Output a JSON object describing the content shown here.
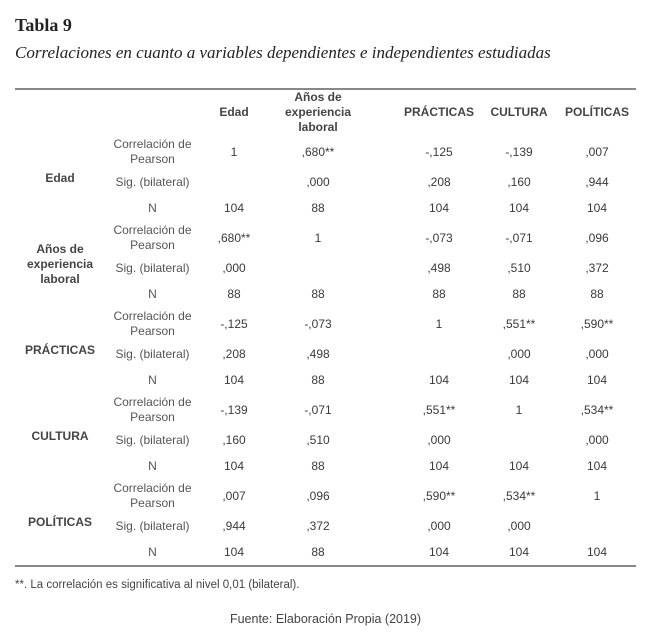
{
  "title": "Tabla 9",
  "subtitle": "Correlaciones en cuanto a variables dependientes e independientes estudiadas",
  "columns": [
    "Edad",
    "Años de experiencia laboral",
    "PRÁCTICAS",
    "CULTURA",
    "POLÍTICAS"
  ],
  "stat_labels": [
    "Correlación de Pearson",
    "Sig. (bilateral)",
    "N"
  ],
  "groups": [
    {
      "label": "Edad",
      "rows": [
        [
          "1",
          ",680**",
          "-,125",
          "-,139",
          ",007"
        ],
        [
          "",
          ",000",
          ",208",
          ",160",
          ",944"
        ],
        [
          "104",
          "88",
          "104",
          "104",
          "104"
        ]
      ]
    },
    {
      "label": "Años de experiencia laboral",
      "rows": [
        [
          ",680**",
          "1",
          "-,073",
          "-,071",
          ",096"
        ],
        [
          ",000",
          "",
          ",498",
          ",510",
          ",372"
        ],
        [
          "88",
          "88",
          "88",
          "88",
          "88"
        ]
      ]
    },
    {
      "label": "PRÁCTICAS",
      "rows": [
        [
          "-,125",
          "-,073",
          "1",
          ",551**",
          ",590**"
        ],
        [
          ",208",
          ",498",
          "",
          ",000",
          ",000"
        ],
        [
          "104",
          "88",
          "104",
          "104",
          "104"
        ]
      ]
    },
    {
      "label": "CULTURA",
      "rows": [
        [
          "-,139",
          "-,071",
          ",551**",
          "1",
          ",534**"
        ],
        [
          ",160",
          ",510",
          ",000",
          "",
          ",000"
        ],
        [
          "104",
          "88",
          "104",
          "104",
          "104"
        ]
      ]
    },
    {
      "label": "POLÍTICAS",
      "rows": [
        [
          ",007",
          ",096",
          ",590**",
          ",534**",
          "1"
        ],
        [
          ",944",
          ",372",
          ",000",
          ",000",
          ""
        ],
        [
          "104",
          "88",
          "104",
          "104",
          "104"
        ]
      ]
    }
  ],
  "footnote": "**. La correlación es significativa al nivel 0,01 (bilateral).",
  "source": "Fuente: Elaboración Propia (2019)"
}
